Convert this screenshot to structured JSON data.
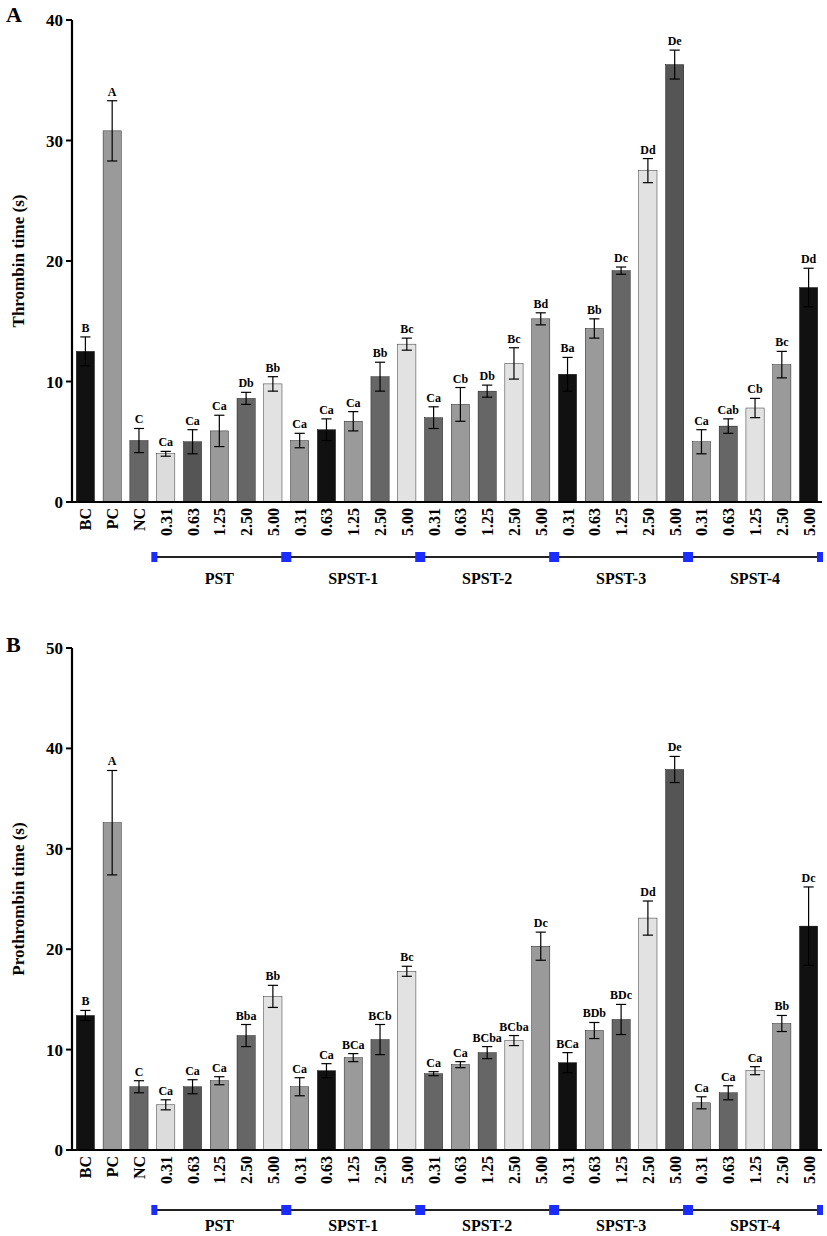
{
  "chart_data": [
    {
      "type": "bar",
      "title": "A",
      "y_label": "Thrombin time (s)",
      "categories": [
        "BC",
        "PC",
        "NC",
        "0.31",
        "0.63",
        "1.25",
        "2.50",
        "5.00",
        "0.31",
        "0.63",
        "1.25",
        "2.50",
        "5.00",
        "0.31",
        "0.63",
        "1.25",
        "2.50",
        "5.00",
        "0.31",
        "0.63",
        "1.25",
        "2.50",
        "5.00",
        "0.31",
        "0.63",
        "1.25",
        "2.50",
        "5.00"
      ],
      "values": [
        12.5,
        30.8,
        5.1,
        4.0,
        5.0,
        5.9,
        8.6,
        9.8,
        5.1,
        6.0,
        6.7,
        10.4,
        13.1,
        7.0,
        8.1,
        9.2,
        11.5,
        15.2,
        10.6,
        14.4,
        19.2,
        27.5,
        36.3,
        5.0,
        6.3,
        7.8,
        11.4,
        17.8
      ],
      "errors": [
        1.2,
        2.5,
        1.0,
        0.2,
        1.0,
        1.3,
        0.5,
        0.6,
        0.6,
        0.9,
        0.8,
        1.2,
        0.5,
        0.9,
        1.4,
        0.5,
        1.3,
        0.5,
        1.4,
        0.8,
        0.3,
        1.0,
        1.2,
        1.0,
        0.6,
        0.8,
        1.1,
        1.6
      ],
      "letters": [
        "B",
        "A",
        "C",
        "Ca",
        "Ca",
        "Ca",
        "Db",
        "Bb",
        "Ca",
        "Ca",
        "Ca",
        "Bb",
        "Bc",
        "Ca",
        "Cb",
        "Db",
        "Bc",
        "Bd",
        "Ba",
        "Bb",
        "Dc",
        "Dd",
        "De",
        "Ca",
        "Cab",
        "Cb",
        "Bc",
        "Dd"
      ],
      "colors": [
        "#111111",
        "#9a9a9a",
        "#666666",
        "#dcdcdc",
        "#555555",
        "#9a9a9a",
        "#666666",
        "#e2e2e2",
        "#9a9a9a",
        "#111111",
        "#9a9a9a",
        "#666666",
        "#e2e2e2",
        "#666666",
        "#9a9a9a",
        "#666666",
        "#e2e2e2",
        "#9a9a9a",
        "#111111",
        "#9a9a9a",
        "#666666",
        "#e2e2e2",
        "#555555",
        "#9a9a9a",
        "#666666",
        "#e2e2e2",
        "#9a9a9a",
        "#111111"
      ],
      "groups": [
        {
          "label": "PST",
          "size": 5
        },
        {
          "label": "SPST-1",
          "size": 5
        },
        {
          "label": "SPST-2",
          "size": 5
        },
        {
          "label": "SPST-3",
          "size": 5
        },
        {
          "label": "SPST-4",
          "size": 5
        }
      ],
      "ylim": [
        0,
        40
      ],
      "yticks": [
        0,
        10,
        20,
        30,
        40
      ],
      "grid": false
    },
    {
      "type": "bar",
      "title": "B",
      "y_label": "Prothrombin time (s)",
      "categories": [
        "BC",
        "PC",
        "NC",
        "0.31",
        "0.63",
        "1.25",
        "2.50",
        "5.00",
        "0.31",
        "0.63",
        "1.25",
        "2.50",
        "5.00",
        "0.31",
        "0.63",
        "1.25",
        "2.50",
        "5.00",
        "0.31",
        "0.63",
        "1.25",
        "2.50",
        "5.00",
        "0.31",
        "0.63",
        "1.25",
        "2.50",
        "5.00"
      ],
      "values": [
        13.4,
        32.6,
        6.3,
        4.5,
        6.3,
        6.9,
        11.4,
        15.3,
        6.3,
        7.9,
        9.2,
        11.0,
        17.8,
        7.6,
        8.5,
        9.7,
        10.9,
        20.3,
        8.7,
        11.9,
        13.0,
        23.1,
        37.9,
        4.7,
        5.7,
        7.9,
        12.6,
        22.3
      ],
      "errors": [
        0.5,
        5.2,
        0.6,
        0.5,
        0.7,
        0.4,
        1.1,
        1.1,
        0.9,
        0.7,
        0.4,
        1.5,
        0.5,
        0.2,
        0.3,
        0.6,
        0.5,
        1.4,
        1.0,
        0.8,
        1.5,
        1.7,
        1.3,
        0.6,
        0.7,
        0.4,
        0.8,
        3.9
      ],
      "letters": [
        "B",
        "A",
        "C",
        "Ca",
        "Ca",
        "Ca",
        "Bba",
        "Bb",
        "Ca",
        "Ca",
        "BCa",
        "BCb",
        "Bc",
        "Ca",
        "Ca",
        "BCba",
        "BCba",
        "Dc",
        "BCa",
        "BDb",
        "BDc",
        "Dd",
        "De",
        "Ca",
        "Ca",
        "Ca",
        "Bb",
        "Dc"
      ],
      "colors": [
        "#111111",
        "#9a9a9a",
        "#666666",
        "#dcdcdc",
        "#555555",
        "#9a9a9a",
        "#666666",
        "#e2e2e2",
        "#9a9a9a",
        "#111111",
        "#9a9a9a",
        "#666666",
        "#e2e2e2",
        "#666666",
        "#9a9a9a",
        "#666666",
        "#e2e2e2",
        "#9a9a9a",
        "#111111",
        "#9a9a9a",
        "#666666",
        "#e2e2e2",
        "#555555",
        "#9a9a9a",
        "#666666",
        "#e2e2e2",
        "#9a9a9a",
        "#111111"
      ],
      "groups": [
        {
          "label": "PST",
          "size": 5
        },
        {
          "label": "SPST-1",
          "size": 5
        },
        {
          "label": "SPST-2",
          "size": 5
        },
        {
          "label": "SPST-3",
          "size": 5
        },
        {
          "label": "SPST-4",
          "size": 5
        }
      ],
      "ylim": [
        0,
        50
      ],
      "yticks": [
        0,
        10,
        20,
        30,
        40,
        50
      ],
      "grid": false
    }
  ]
}
